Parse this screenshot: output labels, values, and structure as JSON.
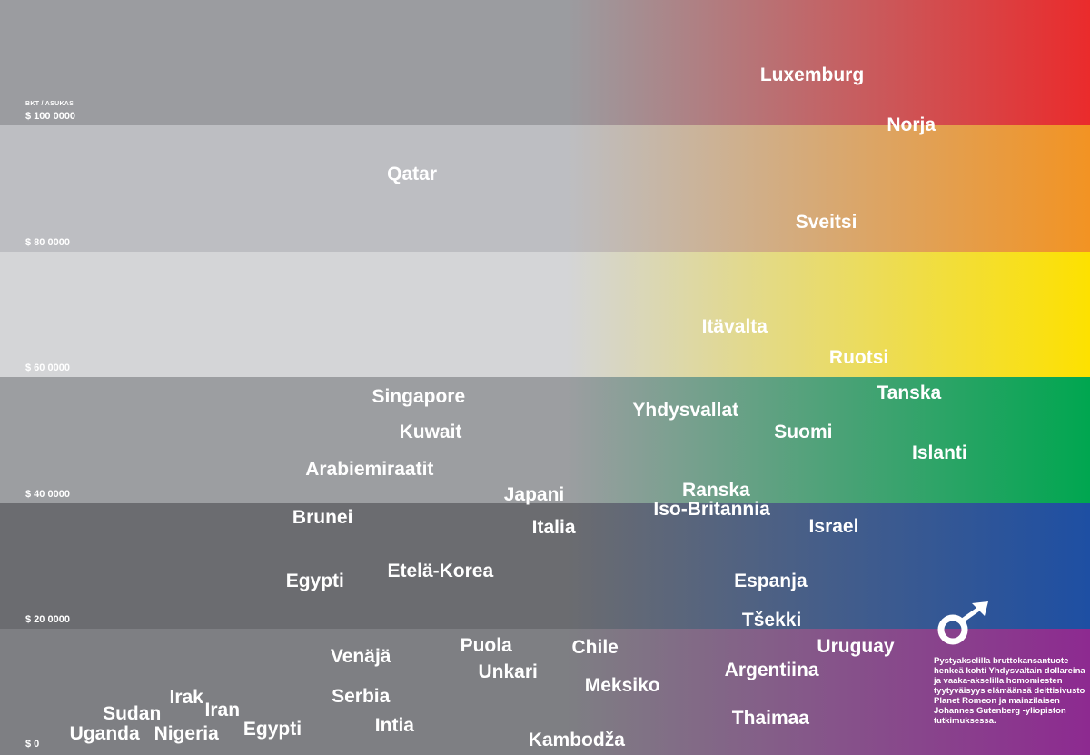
{
  "chart_data": {
    "type": "scatter",
    "ylabel": "BKT / ASUKAS",
    "xlabel": "",
    "ylim": [
      0,
      100000
    ],
    "xlim": [
      0,
      100
    ],
    "y_ticks": [
      {
        "value": 0,
        "label": "$ 0"
      },
      {
        "value": 20000,
        "label": "$ 20 0000"
      },
      {
        "value": 40000,
        "label": "$ 40 0000"
      },
      {
        "value": 60000,
        "label": "$ 60 0000"
      },
      {
        "value": 80000,
        "label": "$ 80 0000"
      },
      {
        "value": 100000,
        "label": "$ 100 0000"
      }
    ],
    "band_colors": [
      "#ea2b2c",
      "#f29323",
      "#fde100",
      "#00a650",
      "#1e4fa3",
      "#8d2a90"
    ],
    "band_grays": [
      "#9b9ca0",
      "#bdbec2",
      "#d4d5d7",
      "#9c9ea1",
      "#6b6c70",
      "#7e7f83"
    ],
    "points": [
      {
        "label": "Luxemburg",
        "x": 74.5,
        "y": 108000
      },
      {
        "label": "Norja",
        "x": 83.6,
        "y": 100000
      },
      {
        "label": "Qatar",
        "x": 37.8,
        "y": 92200
      },
      {
        "label": "Sveitsi",
        "x": 75.8,
        "y": 84500
      },
      {
        "label": "Itävalta",
        "x": 67.4,
        "y": 68000
      },
      {
        "label": "Ruotsi",
        "x": 78.8,
        "y": 63000
      },
      {
        "label": "Tanska",
        "x": 83.4,
        "y": 57400
      },
      {
        "label": "Singapore",
        "x": 38.4,
        "y": 56800
      },
      {
        "label": "Yhdysvallat",
        "x": 62.9,
        "y": 54700
      },
      {
        "label": "Suomi",
        "x": 73.7,
        "y": 51200
      },
      {
        "label": "Kuwait",
        "x": 39.5,
        "y": 51200
      },
      {
        "label": "Islanti",
        "x": 86.2,
        "y": 47900
      },
      {
        "label": "Arabiemiraatit",
        "x": 33.9,
        "y": 45300
      },
      {
        "label": "Ranska",
        "x": 65.7,
        "y": 42000
      },
      {
        "label": "Japani",
        "x": 49.0,
        "y": 41200
      },
      {
        "label": "Iso-Britannia",
        "x": 65.3,
        "y": 38900
      },
      {
        "label": "Brunei",
        "x": 29.6,
        "y": 37700
      },
      {
        "label": "Italia",
        "x": 50.8,
        "y": 36100
      },
      {
        "label": "Israel",
        "x": 76.5,
        "y": 36200
      },
      {
        "label": "Etelä-Korea",
        "x": 40.4,
        "y": 29100
      },
      {
        "label": "Egypti",
        "x": 28.9,
        "y": 27500
      },
      {
        "label": "Espanja",
        "x": 70.7,
        "y": 27600
      },
      {
        "label": "Tšekki",
        "x": 70.8,
        "y": 21300
      },
      {
        "label": "Uruguay",
        "x": 78.5,
        "y": 17200
      },
      {
        "label": "Puola",
        "x": 44.6,
        "y": 17300
      },
      {
        "label": "Chile",
        "x": 54.6,
        "y": 17000
      },
      {
        "label": "Venäjä",
        "x": 33.1,
        "y": 15600
      },
      {
        "label": "Argentiina",
        "x": 70.8,
        "y": 13400
      },
      {
        "label": "Unkari",
        "x": 46.6,
        "y": 13100
      },
      {
        "label": "Meksiko",
        "x": 57.1,
        "y": 11000
      },
      {
        "label": "Serbia",
        "x": 33.1,
        "y": 9300
      },
      {
        "label": "Irak",
        "x": 17.1,
        "y": 9100
      },
      {
        "label": "Iran",
        "x": 20.4,
        "y": 7100
      },
      {
        "label": "Sudan",
        "x": 12.1,
        "y": 6500
      },
      {
        "label": "Thaimaa",
        "x": 70.7,
        "y": 5700
      },
      {
        "label": "Intia",
        "x": 36.2,
        "y": 4600
      },
      {
        "label": "Egypti",
        "x": 25.0,
        "y": 4000
      },
      {
        "label": "Nigeria",
        "x": 17.1,
        "y": 3300
      },
      {
        "label": "Uganda",
        "x": 9.6,
        "y": 3300
      },
      {
        "label": "Kambodža",
        "x": 52.9,
        "y": 2300
      }
    ]
  },
  "legend": {
    "icon": "male-symbol-icon",
    "note": "Pystyakselilla bruttokansantuote henkeä kohti Yhdysvaltain dollareina ja vaaka-akselilla homomiesten tyytyväisyys elämäänsä deittisivusto Planet Romeon ja mainzilaisen Johannes Gutenberg -yliopiston tutkimuksessa."
  }
}
